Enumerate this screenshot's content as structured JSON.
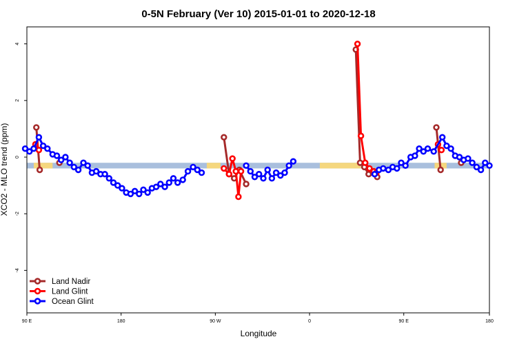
{
  "chart_data": {
    "type": "line",
    "title": "0-5N February (Ver 10)   2015-01-01 to 2020-12-18",
    "xlabel": "Longitude",
    "ylabel": "XCO2 - MLO trend (ppm)",
    "xlim": [
      -90,
      180
    ],
    "ylim": [
      -5.5,
      4.6
    ],
    "x_ticks": [
      {
        "value": -90,
        "label": "90 E"
      },
      {
        "value": -35,
        "label": "180"
      },
      {
        "value": 20,
        "label": "90 W"
      },
      {
        "value": 75,
        "label": "0"
      },
      {
        "value": 130,
        "label": "90 E"
      },
      {
        "value": 180,
        "label": "180"
      }
    ],
    "y_ticks": [
      {
        "value": 4,
        "label": "4"
      },
      {
        "value": 2,
        "label": "2"
      },
      {
        "value": 0,
        "label": "0"
      },
      {
        "value": -2,
        "label": "-2"
      },
      {
        "value": -4,
        "label": "-4"
      }
    ],
    "band": {
      "y_range": [
        -0.4,
        -0.2
      ],
      "color": "#a9bfdd",
      "land_color": "#f5d77e",
      "land_segments": [
        [
          -86,
          -75
        ],
        [
          15,
          23
        ],
        [
          81,
          105
        ],
        [
          148,
          155
        ]
      ]
    },
    "legend": {
      "position": "bottom-left",
      "entries": [
        {
          "label": "Land Nadir",
          "color": "#a52a2a"
        },
        {
          "label": "Land Glint",
          "color": "#ff0000"
        },
        {
          "label": "Ocean Glint",
          "color": "#0000ff"
        }
      ]
    },
    "series": [
      {
        "name": "Land Nadir",
        "color": "#a52a2a",
        "segments": [
          [
            [
              -84.5,
              1.05
            ],
            [
              -82.5,
              -0.45
            ]
          ],
          [
            [
              -71,
              -0.2
            ]
          ],
          [
            [
              25,
              0.7
            ],
            [
              28,
              -0.6
            ],
            [
              31,
              -0.75
            ],
            [
              34,
              -0.45
            ],
            [
              38,
              -0.95
            ]
          ],
          [
            [
              102,
              3.8
            ],
            [
              104.5,
              -0.2
            ],
            [
              107,
              -0.35
            ],
            [
              109.5,
              -0.6
            ],
            [
              112,
              -0.55
            ],
            [
              114.5,
              -0.7
            ]
          ],
          [
            [
              149,
              1.05
            ],
            [
              151.5,
              -0.45
            ]
          ],
          [
            [
              163.5,
              -0.2
            ]
          ]
        ]
      },
      {
        "name": "Land Glint",
        "color": "#ff0000",
        "segments": [
          [
            [
              -85,
              0.45
            ],
            [
              -83,
              0.25
            ]
          ],
          [
            [
              25,
              -0.4
            ],
            [
              28,
              -0.6
            ],
            [
              30,
              -0.05
            ],
            [
              32,
              -0.5
            ],
            [
              33.5,
              -1.4
            ],
            [
              35,
              -0.5
            ]
          ],
          [
            [
              103,
              4.0
            ],
            [
              105,
              0.75
            ],
            [
              107.5,
              -0.2
            ],
            [
              110,
              -0.4
            ],
            [
              112.5,
              -0.5
            ],
            [
              114,
              -0.55
            ]
          ],
          [
            [
              150,
              0.45
            ],
            [
              152,
              0.25
            ]
          ]
        ]
      },
      {
        "name": "Ocean Glint",
        "color": "#0000ff",
        "segments": [
          [
            [
              -91,
              0.3
            ],
            [
              -88.5,
              0.2
            ],
            [
              -86,
              0.3
            ],
            [
              -83,
              0.7
            ],
            [
              -80.5,
              0.4
            ],
            [
              -78,
              0.3
            ],
            [
              -75,
              0.1
            ],
            [
              -72.5,
              0.05
            ],
            [
              -70,
              -0.1
            ],
            [
              -67.5,
              0.0
            ],
            [
              -65,
              -0.2
            ],
            [
              -62.5,
              -0.35
            ],
            [
              -60,
              -0.45
            ],
            [
              -57,
              -0.2
            ],
            [
              -54.5,
              -0.3
            ],
            [
              -52,
              -0.55
            ],
            [
              -49.5,
              -0.5
            ],
            [
              -47,
              -0.6
            ],
            [
              -44.5,
              -0.6
            ],
            [
              -42,
              -0.75
            ],
            [
              -39.5,
              -0.9
            ],
            [
              -37,
              -1.0
            ],
            [
              -34.5,
              -1.1
            ],
            [
              -32,
              -1.25
            ],
            [
              -29.5,
              -1.3
            ],
            [
              -27,
              -1.2
            ],
            [
              -24.5,
              -1.3
            ],
            [
              -22,
              -1.15
            ],
            [
              -19.5,
              -1.25
            ],
            [
              -17,
              -1.1
            ],
            [
              -14.5,
              -1.05
            ],
            [
              -12,
              -0.95
            ],
            [
              -9.5,
              -1.05
            ],
            [
              -7,
              -0.9
            ],
            [
              -4.5,
              -0.75
            ],
            [
              -2,
              -0.9
            ],
            [
              1,
              -0.8
            ],
            [
              4,
              -0.5
            ],
            [
              7,
              -0.35
            ],
            [
              9.5,
              -0.45
            ],
            [
              12,
              -0.55
            ]
          ],
          [
            [
              38,
              -0.3
            ],
            [
              40.5,
              -0.5
            ],
            [
              43,
              -0.7
            ],
            [
              45.5,
              -0.6
            ],
            [
              48,
              -0.75
            ],
            [
              50.5,
              -0.45
            ],
            [
              53,
              -0.75
            ],
            [
              55.5,
              -0.55
            ],
            [
              58,
              -0.65
            ],
            [
              60.5,
              -0.55
            ],
            [
              63,
              -0.3
            ],
            [
              65.5,
              -0.15
            ]
          ],
          [
            [
              113,
              -0.6
            ],
            [
              115.5,
              -0.45
            ],
            [
              118,
              -0.4
            ],
            [
              121,
              -0.45
            ],
            [
              123.5,
              -0.35
            ],
            [
              126,
              -0.4
            ],
            [
              128.5,
              -0.2
            ],
            [
              131,
              -0.3
            ],
            [
              134,
              0.0
            ],
            [
              136.5,
              0.05
            ],
            [
              139,
              0.3
            ],
            [
              141.5,
              0.2
            ],
            [
              144,
              0.3
            ],
            [
              147.5,
              0.2
            ],
            [
              152.5,
              0.7
            ],
            [
              155,
              0.4
            ],
            [
              157.5,
              0.3
            ],
            [
              160,
              0.05
            ],
            [
              162.5,
              0.0
            ],
            [
              165,
              -0.1
            ],
            [
              167.5,
              -0.05
            ],
            [
              170,
              -0.2
            ],
            [
              172.5,
              -0.35
            ],
            [
              175,
              -0.45
            ],
            [
              177.5,
              -0.2
            ],
            [
              180,
              -0.3
            ]
          ]
        ]
      }
    ]
  }
}
